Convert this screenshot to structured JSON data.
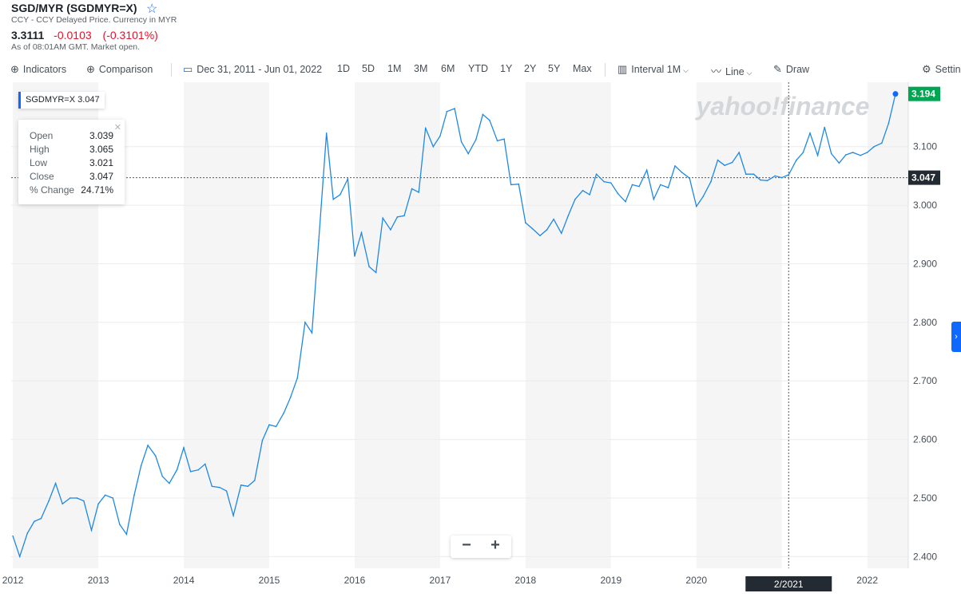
{
  "header": {
    "title": "SGD/MYR (SGDMYR=X)",
    "subtitle": "CCY - CCY Delayed Price. Currency in MYR",
    "price": "3.3111",
    "change": "-0.0103",
    "change_pct": "(-0.3101%)",
    "as_of": "As of 08:01AM GMT. Market open."
  },
  "toolbar": {
    "indicators": "Indicators",
    "comparison": "Comparison",
    "date_range": "Dec 31, 2011 - Jun 01, 2022",
    "ranges": [
      "1D",
      "5D",
      "1M",
      "3M",
      "6M",
      "YTD",
      "1Y",
      "2Y",
      "5Y",
      "Max"
    ],
    "interval": "Interval",
    "interval_value": "1M",
    "line": "Line",
    "draw": "Draw",
    "settings": "Settings"
  },
  "tooltip": {
    "symbol": "SGDMYR=X",
    "symbol_value": "3.047",
    "open_label": "Open",
    "open": "3.039",
    "high_label": "High",
    "high": "3.065",
    "low_label": "Low",
    "low": "3.021",
    "close_label": "Close",
    "close": "3.047",
    "pct_label": "% Change",
    "pct": "24.71%"
  },
  "watermark": "yahoo!finance",
  "crosshair": {
    "x_label": "2/2021",
    "y_label": "3.047"
  },
  "colors": {
    "line": "#1e88e5",
    "last_price": "#00a651",
    "accent": "#0f69ff"
  },
  "chart_data": {
    "type": "line",
    "x_tick_labels": [
      "2012",
      "2013",
      "2014",
      "2015",
      "2016",
      "2017",
      "2018",
      "2019",
      "2020",
      "2021",
      "2022"
    ],
    "y_tick_labels": [
      "2.400",
      "2.500",
      "2.600",
      "2.700",
      "2.800",
      "2.900",
      "3.000",
      "3.100"
    ],
    "ylim": [
      2.38,
      3.21
    ],
    "grid": true,
    "last_value_label": "3.194",
    "series": [
      {
        "x": [
          2012.0,
          2012.08,
          2012.17,
          2012.25,
          2012.33,
          2012.42,
          2012.5,
          2012.58,
          2012.67,
          2012.75,
          2012.83,
          2012.92,
          2013.0,
          2013.08,
          2013.17,
          2013.25,
          2013.33,
          2013.42,
          2013.5,
          2013.58,
          2013.67,
          2013.75,
          2013.83,
          2013.92,
          2014.0,
          2014.08,
          2014.17,
          2014.25,
          2014.33,
          2014.42,
          2014.5,
          2014.58,
          2014.67,
          2014.75,
          2014.83,
          2014.92,
          2015.0,
          2015.08,
          2015.17,
          2015.25,
          2015.33,
          2015.42,
          2015.5,
          2015.58,
          2015.67,
          2015.75,
          2015.83,
          2015.92,
          2016.0,
          2016.08,
          2016.17,
          2016.25,
          2016.33,
          2016.42,
          2016.5,
          2016.58,
          2016.67,
          2016.75,
          2016.83,
          2016.92,
          2017.0,
          2017.08,
          2017.17,
          2017.25,
          2017.33,
          2017.42,
          2017.5,
          2017.58,
          2017.67,
          2017.75,
          2017.83,
          2017.92,
          2018.0,
          2018.08,
          2018.17,
          2018.25,
          2018.33,
          2018.42,
          2018.5,
          2018.58,
          2018.67,
          2018.75,
          2018.83,
          2018.92,
          2019.0,
          2019.08,
          2019.17,
          2019.25,
          2019.33,
          2019.42,
          2019.5,
          2019.58,
          2019.67,
          2019.75,
          2019.83,
          2019.92,
          2020.0,
          2020.08,
          2020.17,
          2020.25,
          2020.33,
          2020.42,
          2020.5,
          2020.58,
          2020.67,
          2020.75,
          2020.83,
          2020.92,
          2021.0,
          2021.08,
          2021.17,
          2021.25,
          2021.33,
          2021.42,
          2021.5,
          2021.58,
          2021.67,
          2021.75,
          2021.83,
          2021.92,
          2022.0,
          2022.08,
          2022.17,
          2022.25,
          2022.33
        ],
        "y": [
          2.435,
          2.4,
          2.44,
          2.46,
          2.465,
          2.495,
          2.525,
          2.49,
          2.5,
          2.5,
          2.495,
          2.445,
          2.49,
          2.505,
          2.5,
          2.455,
          2.438,
          2.505,
          2.555,
          2.59,
          2.572,
          2.537,
          2.525,
          2.548,
          2.586,
          2.545,
          2.548,
          2.558,
          2.52,
          2.518,
          2.512,
          2.47,
          2.522,
          2.52,
          2.53,
          2.598,
          2.625,
          2.622,
          2.645,
          2.672,
          2.705,
          2.8,
          2.782,
          2.94,
          3.123,
          3.01,
          3.018,
          3.045,
          2.913,
          2.953,
          2.895,
          2.885,
          2.978,
          2.958,
          2.98,
          2.982,
          3.028,
          3.022,
          3.132,
          3.1,
          3.118,
          3.16,
          3.165,
          3.108,
          3.088,
          3.112,
          3.155,
          3.145,
          3.11,
          3.113,
          3.035,
          3.036,
          2.97,
          2.96,
          2.948,
          2.958,
          2.976,
          2.952,
          2.982,
          3.01,
          3.025,
          3.018,
          3.053,
          3.04,
          3.038,
          3.02,
          3.006,
          3.035,
          3.032,
          3.06,
          3.01,
          3.035,
          3.03,
          3.067,
          3.056,
          3.046,
          2.998,
          3.015,
          3.04,
          3.077,
          3.068,
          3.073,
          3.09,
          3.053,
          3.053,
          3.043,
          3.042,
          3.05,
          3.047,
          3.052,
          3.077,
          3.09,
          3.123,
          3.085,
          3.133,
          3.088,
          3.072,
          3.086,
          3.09,
          3.085,
          3.09,
          3.1,
          3.106,
          3.14,
          3.19
        ]
      }
    ]
  }
}
